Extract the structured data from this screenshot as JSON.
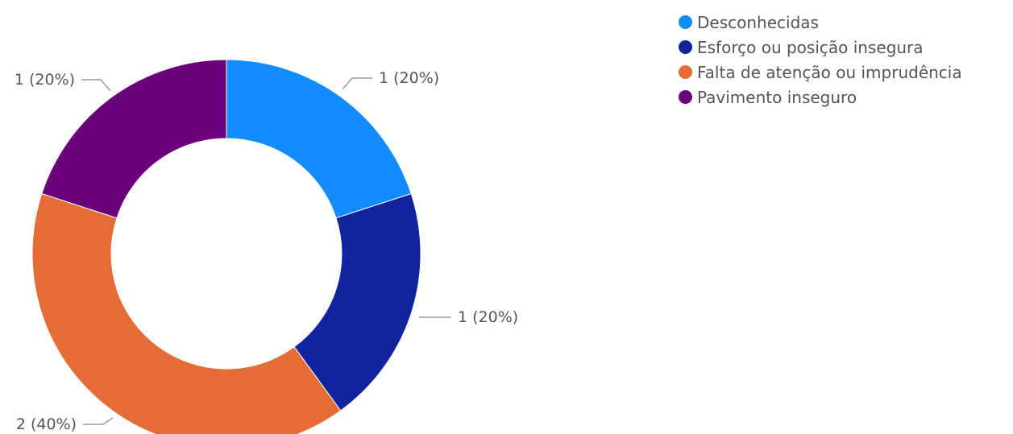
{
  "chart_data": {
    "type": "pie",
    "title": "",
    "series": [
      {
        "name": "Desconhecidas",
        "value": 1,
        "label": "1 (20%)",
        "color": "#118DFF"
      },
      {
        "name": "Esforço ou posição insegura",
        "value": 1,
        "label": "1 (20%)",
        "color": "#12239E"
      },
      {
        "name": "Falta de atenção ou imprudência",
        "value": 2,
        "label": "2 (40%)",
        "color": "#E66C37"
      },
      {
        "name": "Pavimento inseguro",
        "value": 1,
        "label": "1 (20%)",
        "color": "#6B007B"
      }
    ],
    "legend_position": "top-right"
  }
}
